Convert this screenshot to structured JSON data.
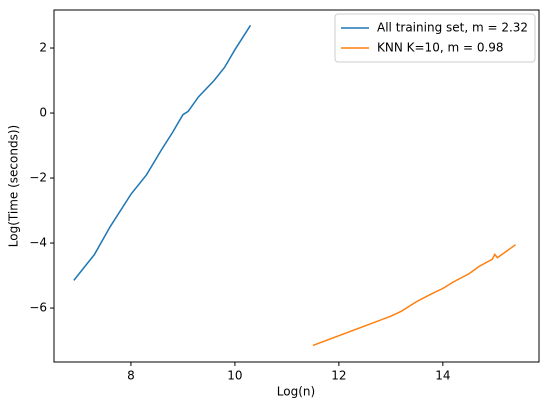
{
  "chart_data": {
    "type": "line",
    "x_label": "Log(n)",
    "y_label": "Log(Time (seconds))",
    "xlim": [
      6.52,
      15.85
    ],
    "ylim": [
      -7.66,
      3.17
    ],
    "xticks": [
      8,
      10,
      12,
      14
    ],
    "yticks": [
      -6,
      -4,
      -2,
      0,
      2
    ],
    "legend": "upper right",
    "series": [
      {
        "name": "All training set, m = 2.32",
        "color": "#1f77b4",
        "x": [
          6.9,
          7.3,
          7.6,
          8.0,
          8.3,
          8.6,
          8.8,
          9.0,
          9.1,
          9.3,
          9.6,
          9.8,
          10.0,
          10.3
        ],
        "values": [
          -5.15,
          -4.35,
          -3.5,
          -2.5,
          -1.9,
          -1.1,
          -0.6,
          -0.05,
          0.05,
          0.5,
          1.0,
          1.4,
          1.95,
          2.7
        ]
      },
      {
        "name": "KNN K=10, m = 0.98",
        "color": "#ff7f0e",
        "x": [
          11.5,
          12.0,
          12.5,
          13.0,
          13.2,
          13.5,
          13.8,
          14.0,
          14.2,
          14.5,
          14.7,
          14.95,
          15.0,
          15.05,
          15.4
        ],
        "values": [
          -7.15,
          -6.85,
          -6.55,
          -6.25,
          -6.1,
          -5.8,
          -5.55,
          -5.4,
          -5.2,
          -4.95,
          -4.72,
          -4.5,
          -4.35,
          -4.45,
          -4.05
        ]
      }
    ]
  }
}
